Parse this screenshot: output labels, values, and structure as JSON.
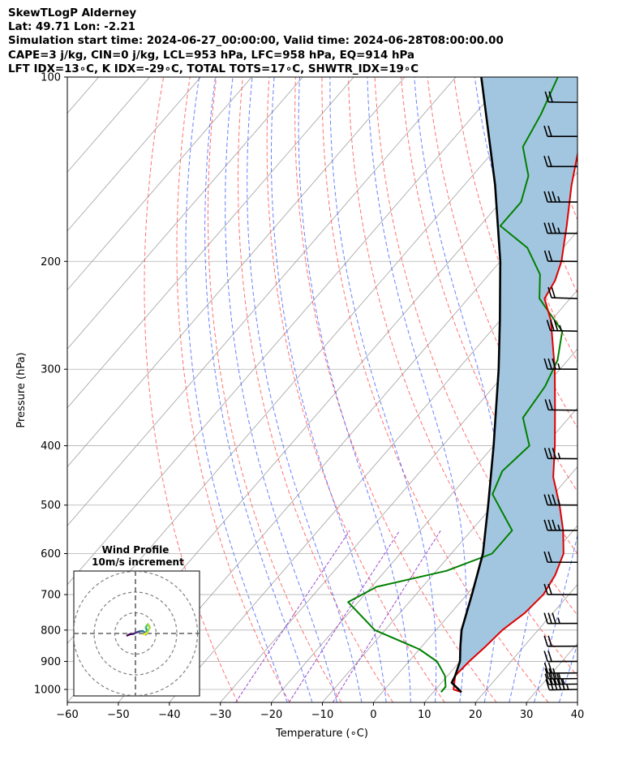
{
  "header": {
    "lines": [
      "SkewTLogP Alderney",
      "Lat: 49.71   Lon: -2.21",
      "Simulation start time: 2024-06-27_00:00:00, Valid time: 2024-06-28T08:00:00.00",
      "CAPE=3 j/kg, CIN=0 j/kg, LCL=953 hPa, LFC=958 hPa, EQ=914 hPa",
      "LFT IDX=13∘C, K IDX=-29∘C, TOTAL TOTS=17∘C, SHWTR_IDX=19∘C"
    ]
  },
  "colors": {
    "temperature": "#e00000",
    "dewpoint": "#008000",
    "parcel": "#000000",
    "cape_fill": "#a3c6e0",
    "dry_adiabat": "#ff4d4d",
    "moist_adiabat": "#3a55ff",
    "mixing_ratio": "#9b4dcc",
    "isotherm": "#a0a0a0",
    "grid": "#b0b0b0"
  },
  "chart_data": {
    "type": "skew-t",
    "title": "SkewTLogP Alderney",
    "xlabel": "Temperature (∘C)",
    "ylabel": "Pressure (hPa)",
    "xlim": [
      -60,
      40
    ],
    "ylim": [
      1050,
      100
    ],
    "xticks": [
      -60,
      -50,
      -40,
      -30,
      -20,
      -10,
      0,
      10,
      20,
      30,
      40
    ],
    "yticks": [
      1000,
      900,
      800,
      700,
      600,
      500,
      400,
      300,
      200,
      100
    ],
    "temperature": [
      [
        1010,
        15.5
      ],
      [
        1000,
        13.5
      ],
      [
        950,
        11.5
      ],
      [
        900,
        11.8
      ],
      [
        850,
        12.5
      ],
      [
        800,
        13.0
      ],
      [
        750,
        14.5
      ],
      [
        700,
        15.0
      ],
      [
        650,
        14.0
      ],
      [
        600,
        12.0
      ],
      [
        550,
        8.0
      ],
      [
        500,
        3.0
      ],
      [
        450,
        -3.0
      ],
      [
        400,
        -8.0
      ],
      [
        350,
        -14.0
      ],
      [
        300,
        -21.0
      ],
      [
        250,
        -30.0
      ],
      [
        230,
        -35.0
      ],
      [
        215,
        -36.0
      ],
      [
        200,
        -38.0
      ],
      [
        175,
        -43.0
      ],
      [
        150,
        -49.0
      ],
      [
        130,
        -54.0
      ],
      [
        115,
        -58.0
      ],
      [
        100,
        -61.0
      ]
    ],
    "dewpoint": [
      [
        1010,
        11.5
      ],
      [
        990,
        11.5
      ],
      [
        950,
        9.5
      ],
      [
        900,
        5.5
      ],
      [
        860,
        0.0
      ],
      [
        800,
        -12.0
      ],
      [
        720,
        -22.0
      ],
      [
        680,
        -19.0
      ],
      [
        640,
        -8.0
      ],
      [
        600,
        -2.0
      ],
      [
        550,
        -2.0
      ],
      [
        480,
        -12.0
      ],
      [
        440,
        -14.0
      ],
      [
        400,
        -13.0
      ],
      [
        360,
        -19.0
      ],
      [
        320,
        -20.0
      ],
      [
        290,
        -22.0
      ],
      [
        260,
        -26.0
      ],
      [
        230,
        -36.0
      ],
      [
        210,
        -40.0
      ],
      [
        190,
        -47.0
      ],
      [
        175,
        -56.0
      ],
      [
        160,
        -56.0
      ],
      [
        145,
        -59.0
      ],
      [
        130,
        -65.0
      ],
      [
        115,
        -67.0
      ],
      [
        100,
        -70.0
      ]
    ],
    "parcel": [
      [
        1010,
        15.5
      ],
      [
        975,
        12.0
      ],
      [
        950,
        11.5
      ],
      [
        900,
        10.0
      ],
      [
        850,
        7.5
      ],
      [
        800,
        5.0
      ],
      [
        700,
        1.0
      ],
      [
        600,
        -3.8
      ],
      [
        500,
        -11.0
      ],
      [
        400,
        -20.0
      ],
      [
        300,
        -32.0
      ],
      [
        250,
        -40.0
      ],
      [
        200,
        -50.0
      ],
      [
        150,
        -64.0
      ],
      [
        100,
        -85.0
      ]
    ],
    "wind_barbs": [
      {
        "p": 1000,
        "dir": 250,
        "kt": 45
      },
      {
        "p": 980,
        "dir": 255,
        "kt": 35
      },
      {
        "p": 960,
        "dir": 255,
        "kt": 25
      },
      {
        "p": 940,
        "dir": 260,
        "kt": 20
      },
      {
        "p": 900,
        "dir": 265,
        "kt": 20
      },
      {
        "p": 850,
        "dir": 265,
        "kt": 20
      },
      {
        "p": 780,
        "dir": 265,
        "kt": 25
      },
      {
        "p": 700,
        "dir": 275,
        "kt": 20
      },
      {
        "p": 620,
        "dir": 275,
        "kt": 20
      },
      {
        "p": 550,
        "dir": 275,
        "kt": 25
      },
      {
        "p": 500,
        "dir": 275,
        "kt": 25
      },
      {
        "p": 420,
        "dir": 280,
        "kt": 25
      },
      {
        "p": 350,
        "dir": 285,
        "kt": 20
      },
      {
        "p": 300,
        "dir": 275,
        "kt": 25
      },
      {
        "p": 260,
        "dir": 295,
        "kt": 25
      },
      {
        "p": 230,
        "dir": 300,
        "kt": 20
      },
      {
        "p": 200,
        "dir": 280,
        "kt": 20
      },
      {
        "p": 180,
        "dir": 275,
        "kt": 25
      },
      {
        "p": 160,
        "dir": 275,
        "kt": 25
      },
      {
        "p": 140,
        "dir": 270,
        "kt": 20
      },
      {
        "p": 125,
        "dir": 270,
        "kt": 20
      },
      {
        "p": 110,
        "dir": 285,
        "kt": 20
      }
    ],
    "hodograph": {
      "title": "Wind Profile",
      "subtitle": "10m/s increment",
      "rings_ms": [
        10,
        20,
        30
      ],
      "points": [
        [
          -4.0,
          -1.0
        ],
        [
          -2.5,
          -0.3
        ],
        [
          -1.0,
          -0.2
        ],
        [
          0.5,
          0.5
        ],
        [
          2.0,
          1.0
        ],
        [
          3.5,
          1.2
        ],
        [
          4.5,
          0.5
        ],
        [
          5.0,
          -0.5
        ],
        [
          5.5,
          1.5
        ],
        [
          5.0,
          3.0
        ],
        [
          6.0,
          4.5
        ],
        [
          7.0,
          3.0
        ],
        [
          5.5,
          0.2
        ],
        [
          4.0,
          -0.5
        ]
      ]
    }
  }
}
